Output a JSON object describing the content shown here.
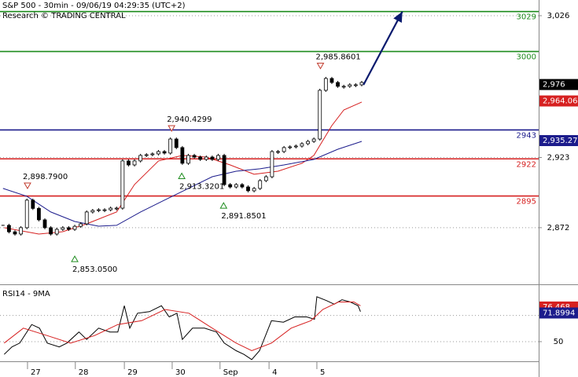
{
  "chart_data": [
    {
      "type": "candlestick",
      "title": "S&P 500 - 30min - 09/06/19 04:29:35 (UTC+2)",
      "subtitle": "Research © TRADING CENTRAL",
      "xlim": [
        -0.5,
        89.6
      ],
      "ylim": [
        2832,
        3037.4
      ],
      "yticks": [
        {
          "value": 3026,
          "label": "3,026"
        },
        {
          "value": 2923,
          "label": "2,923"
        },
        {
          "value": 2872,
          "label": "2,872"
        }
      ],
      "color": "#000000",
      "close": [
        2873.7,
        2869,
        2867.4,
        2872,
        2892,
        2886,
        2877.7,
        2872,
        2867.4,
        2870.8,
        2872,
        2870.8,
        2873,
        2874.8,
        2883.4,
        2884.5,
        2885,
        2885,
        2886.2,
        2886.2,
        2920.5,
        2917.6,
        2920.5,
        2924.5,
        2925,
        2925.6,
        2927.3,
        2926.2,
        2936.4,
        2930.2,
        2918.8,
        2924.5,
        2923.3,
        2921.6,
        2923.3,
        2921.6,
        2924.5,
        2903.3,
        2901.6,
        2903.3,
        2901.6,
        2898.8,
        2900.5,
        2906.2,
        2909,
        2927.3,
        2927.3,
        2930.2,
        2930.7,
        2931.3,
        2933,
        2934.7,
        2936.4,
        2971.8,
        2980.4,
        2977.5,
        2974.7,
        2974.7,
        2975.8,
        2975.8,
        2977.5
      ],
      "moving_averages": [
        {
          "color": "#d62020",
          "x": [
            0.2,
            6,
            10,
            14,
            19,
            22,
            26,
            30,
            34,
            38,
            42,
            46,
            50,
            52,
            55,
            57,
            60
          ],
          "values": [
            2872,
            2867.4,
            2869.1,
            2874.8,
            2883.4,
            2903.4,
            2920.5,
            2924.5,
            2923.3,
            2917.6,
            2910.8,
            2913,
            2918.8,
            2924.5,
            2946.1,
            2957.5,
            2963.3
          ]
        },
        {
          "color": "#1c1c8c",
          "x": [
            0,
            4,
            8,
            12,
            16,
            19,
            23,
            27,
            31,
            35,
            39,
            43,
            47,
            52,
            56,
            60
          ],
          "values": [
            2900.5,
            2894.8,
            2883.4,
            2876.5,
            2873.1,
            2873.7,
            2883.4,
            2892,
            2900.5,
            2909,
            2913,
            2914.8,
            2917.6,
            2921.6,
            2929,
            2934.7
          ]
        }
      ],
      "levels": [
        {
          "value": 3029,
          "color": "#1e8c1e"
        },
        {
          "value": 3000,
          "color": "#1e8c1e"
        },
        {
          "value": 2943,
          "color": "#1c1c8c"
        },
        {
          "value": 2922,
          "color": "#d62020"
        },
        {
          "value": 2895,
          "color": "#d62020"
        }
      ],
      "price_tags": [
        {
          "value": 2976,
          "label": "2,976",
          "color": "#000000"
        },
        {
          "value": 2964.06,
          "label": "2,964.06",
          "color": "#d62020"
        },
        {
          "value": 2935.27,
          "label": "2,935.27",
          "color": "#1c1c8c"
        }
      ],
      "annotations": [
        {
          "x": 53.1,
          "value": 2985.8601,
          "label": "2,985.8601",
          "marker": "down"
        },
        {
          "x": 28.2,
          "value": 2940.4299,
          "label": "2,940.4299",
          "marker": "down"
        },
        {
          "x": 4.1,
          "value": 2898.79,
          "label": "2,898.7900",
          "marker": "down"
        },
        {
          "x": 29.9,
          "value": 2913.3201,
          "label": "2,913.3201",
          "marker": "up"
        },
        {
          "x": 36.9,
          "value": 2891.8501,
          "label": "2,891.8501",
          "marker": "up"
        },
        {
          "x": 12.0,
          "value": 2853.05,
          "label": "2,853.0500",
          "marker": "up"
        }
      ],
      "projection": {
        "x": [
          60.3,
          66.8
        ],
        "values": [
          2975.8,
          3029
        ],
        "color": "#0a1a6e"
      }
    },
    {
      "type": "line",
      "title": "RSI14 - 9MA",
      "xlim": [
        -0.5,
        89.6
      ],
      "ylim": [
        35,
        92
      ],
      "yticks": [
        50
      ],
      "reference_lines": [
        70
      ],
      "xticks": [
        {
          "value": 4.1,
          "label": "27"
        },
        {
          "value": 12.1,
          "label": "28"
        },
        {
          "value": 20.3,
          "label": "29"
        },
        {
          "value": 28.3,
          "label": "30"
        },
        {
          "value": 36.3,
          "label": "Sep"
        },
        {
          "value": 44.5,
          "label": "4"
        },
        {
          "value": 52.5,
          "label": "5"
        }
      ],
      "series": [
        {
          "color": "#000000",
          "x": [
            0.2,
            1.5,
            2.8,
            4.8,
            6.1,
            7.4,
            9.4,
            10.7,
            12.7,
            14,
            16,
            17.9,
            19.2,
            20.3,
            21.2,
            22.5,
            24.5,
            26.5,
            27.8,
            29.1,
            30,
            31.7,
            33.7,
            35.7,
            37,
            39,
            40.3,
            41.6,
            42.9,
            44.9,
            46.9,
            48.8,
            50.8,
            52.1,
            52.5,
            54.1,
            55.4,
            56.7,
            58.1,
            59.4,
            59.8
          ],
          "values": [
            40.3,
            46,
            48.9,
            63.1,
            60.3,
            48.9,
            46,
            48.9,
            57.4,
            51.7,
            60.3,
            57.4,
            57.4,
            77.4,
            60.3,
            71.7,
            72.9,
            77.4,
            68.9,
            71.7,
            51.7,
            60.3,
            60.3,
            57.4,
            48.9,
            43.1,
            40.3,
            36.3,
            43.1,
            66,
            64.9,
            68.9,
            68.9,
            67.1,
            84.3,
            81.4,
            78.6,
            82,
            80.3,
            77.4,
            72.9
          ]
        },
        {
          "color": "#d62020",
          "x": [
            0.2,
            3.4,
            7.4,
            11.3,
            15.3,
            19.2,
            23.2,
            27.1,
            31.1,
            35,
            39,
            41.6,
            44.9,
            48.2,
            51.5,
            53.5,
            56.1,
            58.7,
            59.8
          ],
          "values": [
            48.9,
            60.3,
            54.6,
            48.9,
            54.6,
            63.1,
            66,
            74.6,
            71.7,
            60.3,
            48.9,
            43.1,
            48.9,
            60.3,
            66,
            74.6,
            80.3,
            80.3,
            77.4
          ]
        }
      ],
      "price_tags": [
        {
          "value": 76.468,
          "color": "#d62020"
        },
        {
          "value": 71.8994,
          "color": "#1c1c8c"
        }
      ]
    }
  ]
}
